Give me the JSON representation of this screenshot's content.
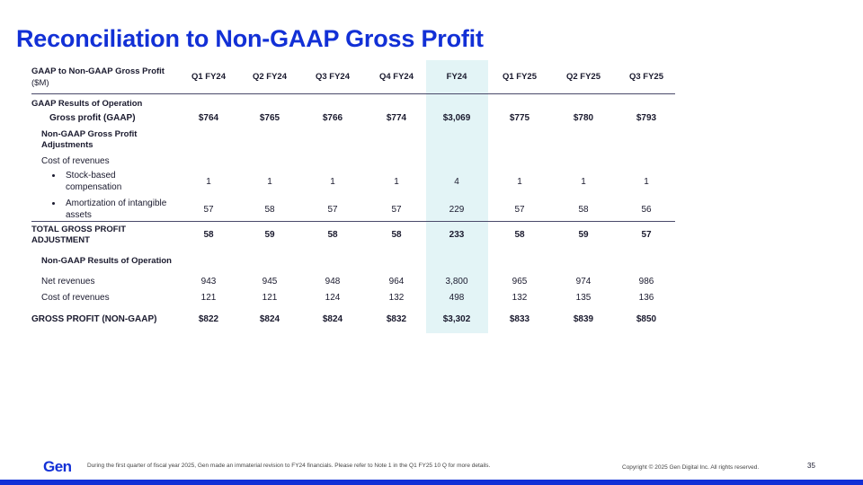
{
  "page": {
    "title": "Reconciliation to Non-GAAP Gross Profit",
    "footnote": "During the first quarter of fiscal year 2025, Gen made an immaterial revision to FY24 financials. Please refer to Note 1 in the Q1 FY25 10 Q for more details.",
    "copyright": "Copyright © 2025 Gen Digital Inc. All rights reserved.",
    "page_number": "35",
    "logo": "Gen",
    "accent_color": "#1230d6",
    "highlight_color": "#e3f4f6"
  },
  "table": {
    "header_label_line1": "GAAP to Non-GAAP Gross Profit",
    "header_label_line2": "($M)",
    "columns": [
      "Q1 FY24",
      "Q2 FY24",
      "Q3 FY24",
      "Q4 FY24",
      "FY24",
      "Q1 FY25",
      "Q2 FY25",
      "Q3 FY25"
    ],
    "section_gaap": "GAAP Results of Operation",
    "gross_profit_gaap": {
      "label": "Gross profit (GAAP)",
      "values": [
        "$764",
        "$765",
        "$766",
        "$774",
        "$3,069",
        "$775",
        "$780",
        "$793"
      ]
    },
    "adjustments_heading_line1": "Non-GAAP Gross Profit",
    "adjustments_heading_line2": "Adjustments",
    "cost_of_revenues_label": "Cost of revenues",
    "stock_based": {
      "label_line1": "Stock-based",
      "label_line2": "compensation",
      "values": [
        "1",
        "1",
        "1",
        "1",
        "4",
        "1",
        "1",
        "1"
      ]
    },
    "amortization": {
      "label_line1": "Amortization of intangible",
      "label_line2": "assets",
      "values": [
        "57",
        "58",
        "57",
        "57",
        "229",
        "57",
        "58",
        "56"
      ]
    },
    "total_adjustment": {
      "label_line1": "TOTAL GROSS PROFIT",
      "label_line2": "ADJUSTMENT",
      "values": [
        "58",
        "59",
        "58",
        "58",
        "233",
        "58",
        "59",
        "57"
      ]
    },
    "section_nongaap": "Non-GAAP Results of Operation",
    "net_revenues": {
      "label": "Net revenues",
      "values": [
        "943",
        "945",
        "948",
        "964",
        "3,800",
        "965",
        "974",
        "986"
      ]
    },
    "cost_of_revenues": {
      "label": "Cost of revenues",
      "values": [
        "121",
        "121",
        "124",
        "132",
        "498",
        "132",
        "135",
        "136"
      ]
    },
    "gross_profit_nongaap": {
      "label": "GROSS PROFIT (NON-GAAP)",
      "values": [
        "$822",
        "$824",
        "$824",
        "$832",
        "$3,302",
        "$833",
        "$839",
        "$850"
      ]
    }
  }
}
